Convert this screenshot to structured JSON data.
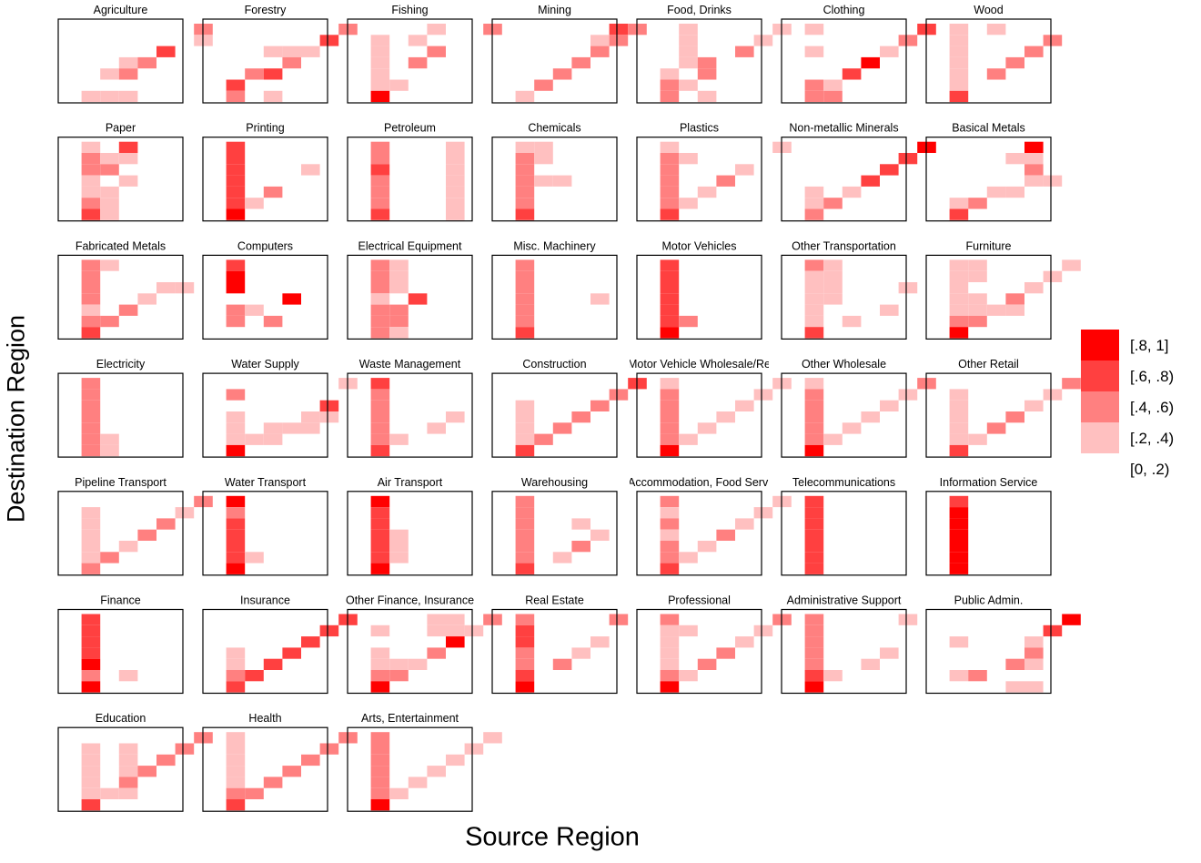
{
  "chart_data": {
    "type": "heatmap",
    "xlabel": "Source Region",
    "ylabel": "Destination Region",
    "legend": {
      "placement": "right",
      "items": [
        {
          "label": "[.8, 1]",
          "color": "#ff0000"
        },
        {
          "label": "[.6, .8)",
          "color": "#ff4040"
        },
        {
          "label": "[.4, .6)",
          "color": "#ff8080"
        },
        {
          "label": "[.2, .4)",
          "color": "#ffc0c0"
        },
        {
          "label": "[0, .2)",
          "color": "#ffffff"
        }
      ]
    },
    "panels": [
      {
        "title": "Agriculture",
        "rows": [
          "00000002",
          "00000001",
          "00000300",
          "00012000",
          "00120000",
          "00000000",
          "01110000"
        ]
      },
      {
        "title": "Forestry",
        "rows": [
          "00000002",
          "00000030",
          "00011100",
          "00002000",
          "00230000",
          "03000000",
          "02010000"
        ]
      },
      {
        "title": "Fishing",
        "rows": [
          "00001002",
          "01010000",
          "01002000",
          "01020000",
          "01000000",
          "01100000",
          "04000000"
        ]
      },
      {
        "title": "Mining",
        "rows": [
          "00000032",
          "00000120",
          "00000200",
          "00002000",
          "00020000",
          "00200000",
          "01000000"
        ]
      },
      {
        "title": "Food, Drinks",
        "rows": [
          "00100001",
          "00100010",
          "00100200",
          "00120000",
          "01020000",
          "02100000",
          "02010000"
        ]
      },
      {
        "title": "Clothing",
        "rows": [
          "01000003",
          "00000020",
          "01000100",
          "00004000",
          "00030000",
          "02100000",
          "02200000"
        ]
      },
      {
        "title": "Wood",
        "rows": [
          "01010000",
          "01000020",
          "01000200",
          "01002000",
          "01020000",
          "01000000",
          "03000000"
        ]
      },
      {
        "title": "Paper",
        "rows": [
          "01030000",
          "02110000",
          "02200000",
          "01010000",
          "01100000",
          "02100000",
          "03100000"
        ]
      },
      {
        "title": "Printing",
        "rows": [
          "03000000",
          "03000000",
          "03000100",
          "03000000",
          "03020000",
          "03100000",
          "04000000"
        ]
      },
      {
        "title": "Petroleum",
        "rows": [
          "02000100",
          "02000100",
          "03000100",
          "02000100",
          "02000100",
          "02000100",
          "03000100"
        ]
      },
      {
        "title": "Chemicals",
        "rows": [
          "01100000",
          "02100000",
          "02000000",
          "02110000",
          "02000000",
          "02000000",
          "03000000"
        ]
      },
      {
        "title": "Plastics",
        "rows": [
          "01000001",
          "02100000",
          "02000100",
          "02002000",
          "02010000",
          "02100000",
          "03000000"
        ]
      },
      {
        "title": "Non-metallic Minerals",
        "rows": [
          "00000004",
          "00000030",
          "00000300",
          "00003000",
          "01010000",
          "01200000",
          "02000000"
        ]
      },
      {
        "title": "Basical Metals",
        "rows": [
          "00000400",
          "00001100",
          "00000200",
          "00000110",
          "00011000",
          "01200000",
          "03000000"
        ]
      },
      {
        "title": "Fabricated Metals",
        "rows": [
          "02100000",
          "02000000",
          "02000110",
          "02001000",
          "01020000",
          "02200000",
          "03000000"
        ]
      },
      {
        "title": "Computers",
        "rows": [
          "03000000",
          "04000000",
          "04000000",
          "00004000",
          "02100000",
          "02020000",
          "00000000"
        ]
      },
      {
        "title": "Electrical Equipment",
        "rows": [
          "02100000",
          "02100000",
          "02100000",
          "01030000",
          "02200000",
          "02200000",
          "02100000"
        ]
      },
      {
        "title": "Misc. Machinery",
        "rows": [
          "02000000",
          "02000000",
          "02000000",
          "02000100",
          "02000000",
          "02000000",
          "03000000"
        ]
      },
      {
        "title": "Motor Vehicles",
        "rows": [
          "03000000",
          "03000000",
          "03000000",
          "03000000",
          "03000000",
          "03200000",
          "04000000"
        ]
      },
      {
        "title": "Other Transportation",
        "rows": [
          "02100000",
          "01100000",
          "01100010",
          "01100000",
          "01000100",
          "01010000",
          "03000000"
        ]
      },
      {
        "title": "Furniture",
        "rows": [
          "01100001",
          "01100010",
          "01000100",
          "01102000",
          "01111000",
          "02200000",
          "04000000"
        ]
      },
      {
        "title": "Electricity",
        "rows": [
          "02000000",
          "02000000",
          "02000000",
          "02000000",
          "02000000",
          "02100000",
          "02100000"
        ]
      },
      {
        "title": "Water Supply",
        "rows": [
          "00000001",
          "02000000",
          "00000030",
          "01000110",
          "01011100",
          "01110000",
          "04000000"
        ]
      },
      {
        "title": "Waste Management",
        "rows": [
          "03000000",
          "02000000",
          "02000000",
          "02000100",
          "02001000",
          "02100000",
          "03000000"
        ]
      },
      {
        "title": "Construction",
        "rows": [
          "00000003",
          "00000020",
          "01000200",
          "01002000",
          "01020000",
          "01200000",
          "03000000"
        ]
      },
      {
        "title": "Motor Vehicle Wholesale/Re",
        "rows": [
          "01000001",
          "02000010",
          "02000100",
          "02001000",
          "02010000",
          "02100000",
          "04000000"
        ]
      },
      {
        "title": "Other Wholesale",
        "rows": [
          "01000002",
          "02000010",
          "02000100",
          "02001000",
          "02010000",
          "02100000",
          "04000000"
        ]
      },
      {
        "title": "Other Retail",
        "rows": [
          "00000002",
          "01000010",
          "01000100",
          "01002000",
          "01020000",
          "01100000",
          "03000000"
        ]
      },
      {
        "title": "Pipeline Transport",
        "rows": [
          "00000002",
          "01000010",
          "01000200",
          "01002000",
          "01010000",
          "01200000",
          "02000000"
        ]
      },
      {
        "title": "Water Transport",
        "rows": [
          "04000000",
          "02000000",
          "03000000",
          "03000000",
          "03000000",
          "03100000",
          "04000000"
        ]
      },
      {
        "title": "Air Transport",
        "rows": [
          "04000000",
          "03000000",
          "03000000",
          "03100000",
          "03100000",
          "03100000",
          "04000000"
        ]
      },
      {
        "title": "Warehousing",
        "rows": [
          "02000000",
          "02000000",
          "02001000",
          "02000100",
          "02002000",
          "02010000",
          "03000000"
        ]
      },
      {
        "title": "Accommodation, Food Servi",
        "rows": [
          "02000001",
          "01000010",
          "02000100",
          "01002000",
          "02010000",
          "02100000",
          "03000000"
        ]
      },
      {
        "title": "Telecommunications",
        "rows": [
          "03000000",
          "03000000",
          "03000000",
          "03000000",
          "03000000",
          "03000000",
          "03000000"
        ]
      },
      {
        "title": "Information Service",
        "rows": [
          "03000000",
          "04000000",
          "04000000",
          "04000000",
          "04000000",
          "04000000",
          "04000000"
        ]
      },
      {
        "title": "Finance",
        "rows": [
          "03000000",
          "03000000",
          "03000000",
          "03000000",
          "04000000",
          "02010000",
          "04000000"
        ]
      },
      {
        "title": "Insurance",
        "rows": [
          "00000003",
          "00000030",
          "00000300",
          "01003000",
          "01030000",
          "02300000",
          "03000000"
        ]
      },
      {
        "title": "Other Finance, Insurance",
        "rows": [
          "00001102",
          "01001110",
          "00000400",
          "01002000",
          "01110000",
          "02200000",
          "04000000"
        ]
      },
      {
        "title": "Real Estate",
        "rows": [
          "02000020",
          "03000000",
          "03000100",
          "02001000",
          "02020000",
          "03000000",
          "04000000"
        ]
      },
      {
        "title": "Professional",
        "rows": [
          "02000002",
          "01100010",
          "01000100",
          "01002000",
          "01020000",
          "02100000",
          "04000000"
        ]
      },
      {
        "title": "Administrative Support",
        "rows": [
          "02000010",
          "02000000",
          "02000000",
          "02000100",
          "02001000",
          "03100000",
          "04000000"
        ]
      },
      {
        "title": "Public Admin.",
        "rows": [
          "00000004",
          "00000030",
          "01000100",
          "00000200",
          "00002100",
          "01200000",
          "00001100"
        ]
      },
      {
        "title": "Education",
        "rows": [
          "00000002",
          "01010020",
          "01010200",
          "01012000",
          "01020000",
          "01110000",
          "03000000"
        ]
      },
      {
        "title": "Health",
        "rows": [
          "01000002",
          "01000020",
          "01000200",
          "01002000",
          "01020000",
          "02200000",
          "03000000"
        ]
      },
      {
        "title": "Arts, Entertainment",
        "rows": [
          "02000001",
          "02000010",
          "02000100",
          "02001000",
          "02010000",
          "02100000",
          "04000000"
        ]
      }
    ]
  }
}
